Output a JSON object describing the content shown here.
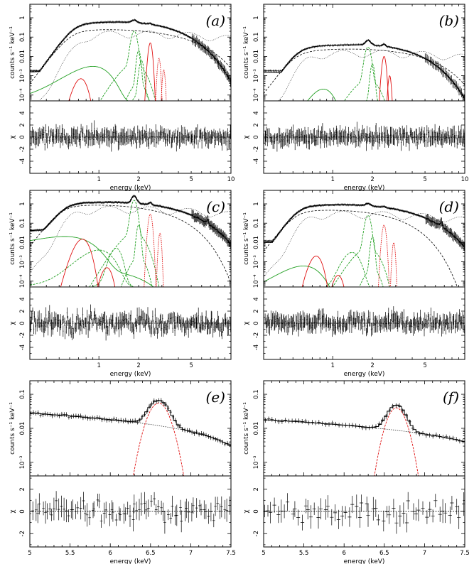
{
  "figure": {
    "width": 667,
    "height": 794
  },
  "chart_data": [
    {
      "id": "a",
      "type": "line",
      "label": "(a)",
      "xscale": "log",
      "xlim": [
        0.3,
        10
      ],
      "xticks": [
        1,
        2,
        5,
        10
      ],
      "xlabel": "energy (keV)",
      "ylabel_top": "counts s⁻¹ keV⁻¹",
      "yscale_top": "log",
      "ylim_top": [
        5e-05,
        5
      ],
      "yticks_top": [
        {
          "v": 0.0001,
          "t": "10⁻⁴"
        },
        {
          "v": 0.001,
          "t": "10⁻³"
        },
        {
          "v": 0.01,
          "t": "0.01"
        },
        {
          "v": 0.1,
          "t": "0.1"
        },
        {
          "v": 1,
          "t": "1"
        }
      ],
      "ylabel_bottom": "χ",
      "ylim_bottom": [
        -6,
        6
      ],
      "yticks_bottom": [
        {
          "v": -4,
          "t": "-4"
        },
        {
          "v": -2,
          "t": "-2"
        },
        {
          "v": 0,
          "t": "0"
        },
        {
          "v": 2,
          "t": "2"
        },
        {
          "v": 4,
          "t": "4"
        }
      ],
      "model": {
        "kind": "broad",
        "peak_e": 1.45,
        "peak_v": 0.6,
        "low_cut": 0.65,
        "high_cut": 6.5,
        "plateau": 0.0015,
        "cont_peak": 1.2,
        "cont_v": 0.25,
        "cont_high": 6.0
      },
      "lines_green": [
        {
          "e": 0.9,
          "a": 0.003,
          "w": 0.22
        },
        {
          "e": 1.85,
          "a": 0.2,
          "w": 0.07
        },
        {
          "e": 2.0,
          "a": 0.02,
          "w": 0.05
        },
        {
          "e": 2.1,
          "a": 0.006,
          "w": 0.06
        }
      ],
      "lines_red": [
        {
          "e": 0.73,
          "a": 0.0007,
          "w": 0.06
        },
        {
          "e": 2.45,
          "a": 0.05,
          "w": 0.06
        },
        {
          "e": 2.85,
          "a": 0.008,
          "w": 0.05
        },
        {
          "e": 3.1,
          "a": 0.002,
          "w": 0.05
        }
      ],
      "data_points": 220,
      "resid_amp": 1.1,
      "resid_bins": 55,
      "seed": 11
    },
    {
      "id": "b",
      "type": "line",
      "label": "(b)",
      "xscale": "log",
      "xlim": [
        0.3,
        10
      ],
      "xticks": [
        1,
        2,
        5,
        10
      ],
      "xlabel": "energy (keV)",
      "ylabel_top": "counts s⁻¹ keV⁻¹",
      "yscale_top": "log",
      "ylim_top": [
        5e-05,
        5
      ],
      "yticks_top": [
        {
          "v": 0.0001,
          "t": "10⁻⁴"
        },
        {
          "v": 0.001,
          "t": "10⁻³"
        },
        {
          "v": 0.01,
          "t": "0.01"
        },
        {
          "v": 0.1,
          "t": "0.1"
        },
        {
          "v": 1,
          "t": "1"
        }
      ],
      "ylabel_bottom": "χ",
      "ylim_bottom": [
        -6,
        6
      ],
      "yticks_bottom": [
        {
          "v": -4,
          "t": "-4"
        },
        {
          "v": -2,
          "t": "-2"
        },
        {
          "v": 0,
          "t": "0"
        },
        {
          "v": 2,
          "t": "2"
        },
        {
          "v": 4,
          "t": "4"
        }
      ],
      "model": {
        "kind": "broad",
        "peak_e": 1.6,
        "peak_v": 0.04,
        "low_cut": 0.55,
        "high_cut": 6.8,
        "plateau": 0.0015,
        "cont_peak": 1.5,
        "cont_v": 0.025,
        "cont_high": 6.0
      },
      "lines_green": [
        {
          "e": 0.85,
          "a": 0.0002,
          "w": 0.12
        },
        {
          "e": 1.85,
          "a": 0.03,
          "w": 0.07
        },
        {
          "e": 2.0,
          "a": 0.004,
          "w": 0.05
        }
      ],
      "lines_red": [
        {
          "e": 2.45,
          "a": 0.01,
          "w": 0.06
        },
        {
          "e": 2.7,
          "a": 0.001,
          "w": 0.05
        }
      ],
      "data_points": 160,
      "resid_amp": 1.0,
      "resid_bins": 55,
      "seed": 23
    },
    {
      "id": "c",
      "type": "line",
      "label": "(c)",
      "xscale": "log",
      "xlim": [
        0.3,
        10
      ],
      "xticks": [
        1,
        2,
        5
      ],
      "xlabel": "energy (keV)",
      "ylabel_top": "counts s⁻¹ keV⁻¹",
      "yscale_top": "log",
      "ylim_top": [
        5e-05,
        5
      ],
      "yticks_top": [
        {
          "v": 0.0001,
          "t": "10⁻⁴"
        },
        {
          "v": 0.001,
          "t": "10⁻³"
        },
        {
          "v": 0.01,
          "t": "0.01"
        },
        {
          "v": 0.1,
          "t": "0.1"
        },
        {
          "v": 1,
          "t": "1"
        }
      ],
      "ylabel_bottom": "χ",
      "ylim_bottom": [
        -6,
        6
      ],
      "yticks_bottom": [
        {
          "v": -4,
          "t": "-4"
        },
        {
          "v": -2,
          "t": "-2"
        },
        {
          "v": 0,
          "t": "0"
        },
        {
          "v": 2,
          "t": "2"
        },
        {
          "v": 4,
          "t": "4"
        }
      ],
      "model": {
        "kind": "broad",
        "peak_e": 1.2,
        "peak_v": 1.2,
        "low_cut": 0.55,
        "high_cut": 9.0,
        "plateau": 0.03,
        "cont_peak": 1.0,
        "cont_v": 0.9,
        "cont_high": 4.0,
        "fe": {
          "e": 6.65,
          "a": 0.06,
          "w": 0.1
        }
      },
      "lines_green": [
        {
          "e": 0.55,
          "a": 0.02,
          "w": 0.25
        },
        {
          "e": 1.0,
          "a": 0.004,
          "w": 0.2
        },
        {
          "e": 1.35,
          "a": 0.005,
          "w": 0.1
        },
        {
          "e": 1.85,
          "a": 1.5,
          "w": 0.07
        },
        {
          "e": 2.0,
          "a": 0.08,
          "w": 0.05
        }
      ],
      "lines_red": [
        {
          "e": 0.75,
          "a": 0.015,
          "w": 0.07
        },
        {
          "e": 1.15,
          "a": 0.0005,
          "w": 0.08
        },
        {
          "e": 2.45,
          "a": 0.3,
          "w": 0.06
        },
        {
          "e": 2.9,
          "a": 0.03,
          "w": 0.05
        }
      ],
      "data_points": 260,
      "resid_amp": 1.6,
      "resid_bins": 60,
      "seed": 37
    },
    {
      "id": "d",
      "type": "line",
      "label": "(d)",
      "xscale": "log",
      "xlim": [
        0.3,
        10
      ],
      "xticks": [
        1,
        2,
        5
      ],
      "xlabel": "energy (keV)",
      "ylabel_top": "counts s⁻¹ keV⁻¹",
      "yscale_top": "log",
      "ylim_top": [
        5e-05,
        5
      ],
      "yticks_top": [
        {
          "v": 0.0001,
          "t": "10⁻⁴"
        },
        {
          "v": 0.001,
          "t": "10⁻³"
        },
        {
          "v": 0.01,
          "t": "0.01"
        },
        {
          "v": 0.1,
          "t": "0.1"
        },
        {
          "v": 1,
          "t": "1"
        }
      ],
      "ylabel_bottom": "χ",
      "ylim_bottom": [
        -6,
        6
      ],
      "yticks_bottom": [
        {
          "v": -4,
          "t": "-4"
        },
        {
          "v": -2,
          "t": "-2"
        },
        {
          "v": 0,
          "t": "0"
        },
        {
          "v": 2,
          "t": "2"
        },
        {
          "v": 4,
          "t": "4"
        }
      ],
      "model": {
        "kind": "broad",
        "peak_e": 1.15,
        "peak_v": 0.9,
        "low_cut": 0.55,
        "high_cut": 9.0,
        "plateau": 0.01,
        "cont_peak": 1.0,
        "cont_v": 0.5,
        "cont_high": 3.5,
        "fe": {
          "e": 6.65,
          "a": 0.05,
          "w": 0.1
        }
      },
      "lines_green": [
        {
          "e": 0.6,
          "a": 0.0006,
          "w": 0.15
        },
        {
          "e": 1.4,
          "a": 0.003,
          "w": 0.15
        },
        {
          "e": 1.85,
          "a": 0.25,
          "w": 0.07
        },
        {
          "e": 2.0,
          "a": 0.02,
          "w": 0.05
        }
      ],
      "lines_red": [
        {
          "e": 0.75,
          "a": 0.002,
          "w": 0.06
        },
        {
          "e": 1.1,
          "a": 0.0002,
          "w": 0.07
        },
        {
          "e": 2.45,
          "a": 0.08,
          "w": 0.06
        },
        {
          "e": 2.9,
          "a": 0.01,
          "w": 0.05
        }
      ],
      "data_points": 240,
      "resid_amp": 1.2,
      "resid_bins": 60,
      "seed": 49
    },
    {
      "id": "e",
      "type": "line",
      "label": "(e)",
      "xscale": "linear",
      "xlim": [
        5,
        7.5
      ],
      "xticks": [
        5,
        5.5,
        6,
        6.5,
        7,
        7.5
      ],
      "xlabel": "energy (keV)",
      "ylabel_top": "counts s⁻¹ keV⁻¹",
      "yscale_top": "log",
      "ylim_top": [
        0.0004,
        0.25
      ],
      "yticks_top": [
        {
          "v": 0.001,
          "t": "10⁻³"
        },
        {
          "v": 0.01,
          "t": "0.01"
        },
        {
          "v": 0.1,
          "t": "0.1"
        }
      ],
      "ylabel_bottom": "χ",
      "ylim_bottom": [
        -3.2,
        3.2
      ],
      "yticks_bottom": [
        {
          "v": -2,
          "t": "-2"
        },
        {
          "v": 0,
          "t": "0"
        },
        {
          "v": 2,
          "t": "2"
        }
      ],
      "model": {
        "kind": "fe",
        "c0": 0.028,
        "c1": 0.0025,
        "line_e": 6.6,
        "line_a": 0.055,
        "line_w": 0.1
      },
      "data_points": 85,
      "resid_amp": 1.0,
      "resid_bins": 85,
      "seed": 61
    },
    {
      "id": "f",
      "type": "line",
      "label": "(f)",
      "xscale": "linear",
      "xlim": [
        5,
        7.5
      ],
      "xticks": [
        5,
        5.5,
        6,
        6.5,
        7,
        7.5
      ],
      "xlabel": "energy (keV)",
      "ylabel_top": "counts s⁻¹ keV⁻¹",
      "yscale_top": "log",
      "ylim_top": [
        0.0004,
        0.25
      ],
      "yticks_top": [
        {
          "v": 0.001,
          "t": "10⁻³"
        },
        {
          "v": 0.01,
          "t": "0.01"
        },
        {
          "v": 0.1,
          "t": "0.1"
        }
      ],
      "ylabel_bottom": "χ",
      "ylim_bottom": [
        -3.2,
        3.2
      ],
      "yticks_bottom": [
        {
          "v": -2,
          "t": "-2"
        },
        {
          "v": 0,
          "t": "0"
        },
        {
          "v": 2,
          "t": "2"
        }
      ],
      "model": {
        "kind": "fe",
        "c0": 0.018,
        "c1": 0.0014,
        "line_e": 6.65,
        "line_a": 0.04,
        "line_w": 0.09
      },
      "data_points": 60,
      "resid_amp": 1.0,
      "resid_bins": 60,
      "seed": 73
    }
  ],
  "colors": {
    "data": "#000000",
    "green": "#22a022",
    "red": "#e01010",
    "dotted": "#333333",
    "dashed_cont": "#000000"
  }
}
